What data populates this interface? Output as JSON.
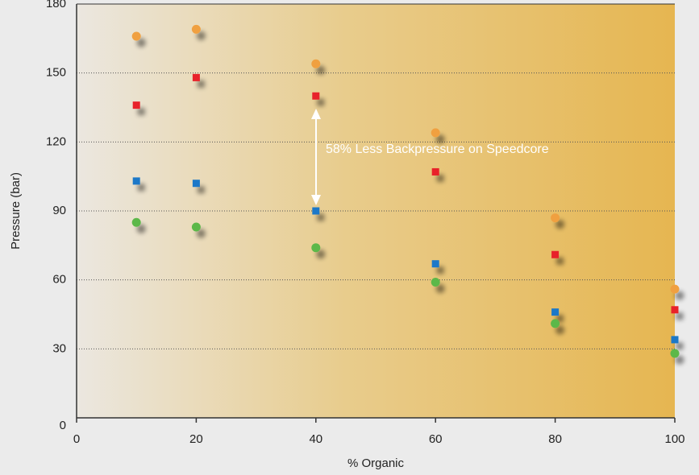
{
  "chart_data": {
    "type": "scatter",
    "xlabel": "% Organic",
    "ylabel": "Pressure (bar)",
    "annotation": "58% Less Backpressure on Speedcore",
    "xlim": [
      0,
      100
    ],
    "xticks": [
      0,
      20,
      40,
      60,
      80,
      100
    ],
    "ylim": [
      0,
      180
    ],
    "yticks": [
      0,
      30,
      60,
      90,
      120,
      150,
      180
    ],
    "grid": true,
    "series": [
      {
        "color": "#f0a040",
        "marker": "circle",
        "x": [
          10,
          20,
          40,
          60,
          80,
          100
        ],
        "values": [
          166,
          169,
          154,
          124,
          87,
          56
        ]
      },
      {
        "color": "#e8202a",
        "marker": "square",
        "x": [
          10,
          20,
          40,
          60,
          80,
          100
        ],
        "values": [
          136,
          148,
          140,
          107,
          71,
          47
        ]
      },
      {
        "color": "#1a78c8",
        "marker": "square",
        "x": [
          10,
          20,
          40,
          60,
          80,
          100
        ],
        "values": [
          103,
          102,
          90,
          67,
          46,
          34
        ]
      },
      {
        "color": "#5cb848",
        "marker": "circle",
        "x": [
          10,
          20,
          40,
          60,
          80,
          100
        ],
        "values": [
          85,
          83,
          74,
          59,
          41,
          28
        ]
      }
    ]
  }
}
